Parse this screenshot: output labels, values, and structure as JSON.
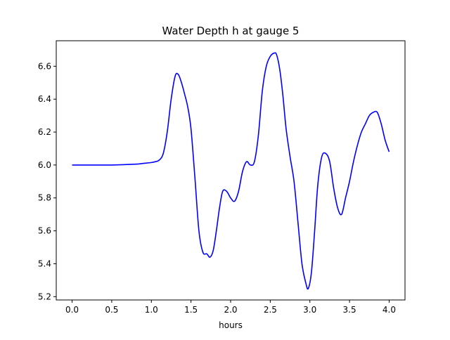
{
  "chart_data": {
    "type": "line",
    "title": "Water Depth h at gauge 5",
    "xlabel": "hours",
    "ylabel": "",
    "xlim": [
      -0.2,
      4.2
    ],
    "ylim": [
      5.18,
      6.755
    ],
    "xticks": [
      0.0,
      0.5,
      1.0,
      1.5,
      2.0,
      2.5,
      3.0,
      3.5,
      4.0
    ],
    "xtick_labels": [
      "0.0",
      "0.5",
      "1.0",
      "1.5",
      "2.0",
      "2.5",
      "3.0",
      "3.5",
      "4.0"
    ],
    "yticks": [
      5.2,
      5.4,
      5.6,
      5.8,
      6.0,
      6.2,
      6.4,
      6.6
    ],
    "ytick_labels": [
      "5.2",
      "5.4",
      "5.6",
      "5.8",
      "6.0",
      "6.2",
      "6.4",
      "6.6"
    ],
    "grid": false,
    "legend": "none",
    "series": [
      {
        "color": "#0000ff",
        "x": [
          0.0,
          0.5,
          0.8,
          0.9,
          1.0,
          1.05,
          1.1,
          1.15,
          1.2,
          1.25,
          1.3,
          1.34,
          1.38,
          1.42,
          1.46,
          1.5,
          1.55,
          1.6,
          1.65,
          1.7,
          1.74,
          1.78,
          1.82,
          1.86,
          1.9,
          1.95,
          2.0,
          2.05,
          2.1,
          2.15,
          2.2,
          2.25,
          2.3,
          2.35,
          2.4,
          2.45,
          2.5,
          2.55,
          2.58,
          2.62,
          2.66,
          2.7,
          2.75,
          2.8,
          2.85,
          2.9,
          2.95,
          2.98,
          3.02,
          3.06,
          3.1,
          3.15,
          3.2,
          3.25,
          3.3,
          3.35,
          3.4,
          3.45,
          3.5,
          3.55,
          3.6,
          3.65,
          3.7,
          3.75,
          3.8,
          3.85,
          3.9,
          3.95,
          4.0
        ],
        "y": [
          6.0,
          6.0,
          6.005,
          6.01,
          6.015,
          6.02,
          6.03,
          6.07,
          6.2,
          6.4,
          6.54,
          6.55,
          6.5,
          6.43,
          6.35,
          6.22,
          5.92,
          5.6,
          5.47,
          5.46,
          5.44,
          5.48,
          5.6,
          5.74,
          5.84,
          5.84,
          5.8,
          5.78,
          5.84,
          5.96,
          6.02,
          6.0,
          6.02,
          6.18,
          6.45,
          6.6,
          6.66,
          6.68,
          6.67,
          6.58,
          6.42,
          6.22,
          6.05,
          5.9,
          5.65,
          5.4,
          5.28,
          5.25,
          5.35,
          5.6,
          5.88,
          6.05,
          6.07,
          6.02,
          5.86,
          5.74,
          5.7,
          5.8,
          5.9,
          6.02,
          6.12,
          6.2,
          6.25,
          6.3,
          6.32,
          6.32,
          6.25,
          6.15,
          6.08
        ]
      }
    ]
  }
}
